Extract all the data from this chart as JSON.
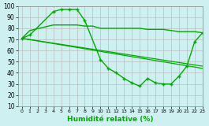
{
  "xlabel": "Humidité relative (%)",
  "bg_color": "#cff0f0",
  "grid_color": "#bbbbbb",
  "line_color": "#00aa00",
  "xlim": [
    -0.5,
    23
  ],
  "ylim": [
    10,
    100
  ],
  "yticks": [
    10,
    20,
    30,
    40,
    50,
    60,
    70,
    80,
    90,
    100
  ],
  "xticks": [
    0,
    1,
    2,
    3,
    4,
    5,
    6,
    7,
    8,
    9,
    10,
    11,
    12,
    13,
    14,
    15,
    16,
    17,
    18,
    19,
    20,
    21,
    22,
    23
  ],
  "series": [
    {
      "x": [
        0,
        1,
        4,
        5,
        6,
        7,
        8,
        9,
        10,
        11,
        12,
        13,
        14,
        15,
        16,
        17,
        18,
        19,
        20,
        21,
        22,
        23
      ],
      "y": [
        71,
        78,
        83,
        83,
        83,
        83,
        82,
        82,
        80,
        80,
        80,
        80,
        80,
        80,
        79,
        79,
        79,
        78,
        77,
        77,
        77,
        76
      ],
      "has_markers": false,
      "lw": 1.0
    },
    {
      "x": [
        0,
        1,
        4,
        5,
        6,
        7,
        8,
        10,
        11,
        12,
        13,
        14,
        15,
        16,
        17,
        18,
        19,
        20,
        21,
        22,
        23
      ],
      "y": [
        71,
        74,
        95,
        97,
        97,
        97,
        87,
        52,
        44,
        40,
        35,
        31,
        28,
        35,
        31,
        30,
        30,
        37,
        46,
        68,
        76
      ],
      "has_markers": true,
      "lw": 1.0
    },
    {
      "x": [
        0,
        23
      ],
      "y": [
        71,
        46
      ],
      "has_markers": false,
      "lw": 0.9
    },
    {
      "x": [
        0,
        23
      ],
      "y": [
        71,
        44
      ],
      "has_markers": false,
      "lw": 0.9
    }
  ]
}
